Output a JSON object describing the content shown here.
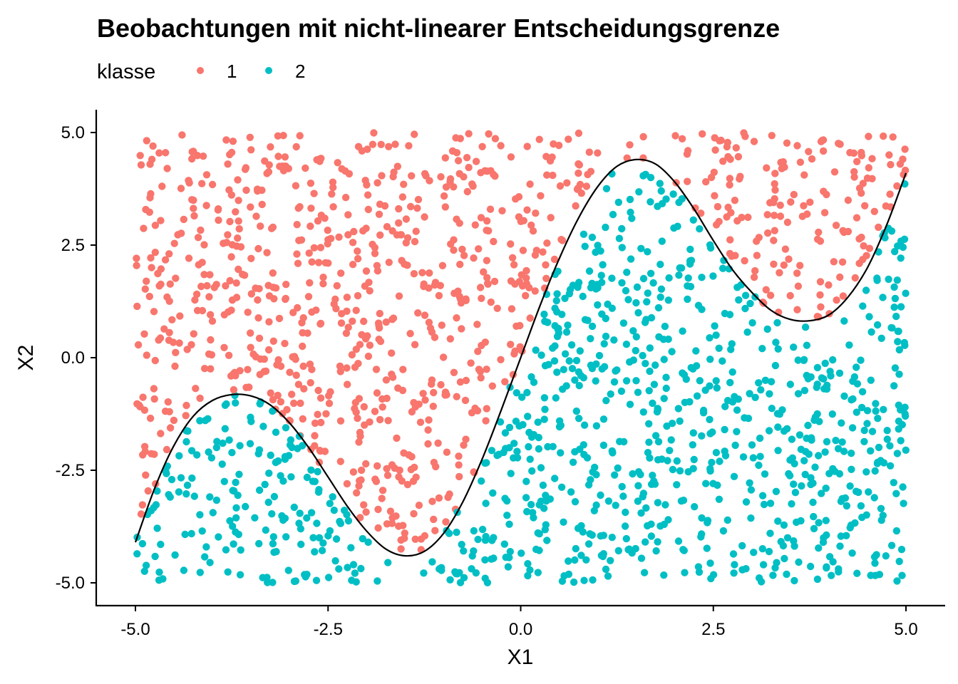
{
  "chart_data": {
    "type": "scatter",
    "title": "Beobachtungen mit nicht-linearer Entscheidungsgrenze",
    "xlabel": "X1",
    "ylabel": "X2",
    "xlim": [
      -5.0,
      5.0
    ],
    "ylim": [
      -5.0,
      5.0
    ],
    "x_ticks": [
      "-5.0",
      "-2.5",
      "0.0",
      "2.5",
      "5.0"
    ],
    "y_ticks": [
      "5.0",
      "2.5",
      "0.0",
      "-2.5",
      "-5.0"
    ],
    "x_tick_values": [
      -5.0,
      -2.5,
      0.0,
      2.5,
      5.0
    ],
    "y_tick_values": [
      5.0,
      2.5,
      0.0,
      -2.5,
      -5.0
    ],
    "grid": false,
    "legend": {
      "title": "klasse",
      "position": "top-left",
      "entries": [
        {
          "label": "1",
          "color": "#F8766D"
        },
        {
          "label": "2",
          "color": "#00BFC4"
        }
      ]
    },
    "decision_boundary": {
      "description": "Kurve",
      "color": "#000000",
      "points": [
        [
          -5.0,
          -4.1
        ],
        [
          -4.75,
          -2.9
        ],
        [
          -4.5,
          -1.95
        ],
        [
          -4.25,
          -1.3
        ],
        [
          -4.0,
          -0.95
        ],
        [
          -3.75,
          -0.82
        ],
        [
          -3.5,
          -0.85
        ],
        [
          -3.25,
          -1.05
        ],
        [
          -3.0,
          -1.45
        ],
        [
          -2.75,
          -2.0
        ],
        [
          -2.5,
          -2.65
        ],
        [
          -2.25,
          -3.3
        ],
        [
          -2.0,
          -3.85
        ],
        [
          -1.75,
          -4.25
        ],
        [
          -1.5,
          -4.4
        ],
        [
          -1.25,
          -4.3
        ],
        [
          -1.0,
          -3.9
        ],
        [
          -0.75,
          -3.2
        ],
        [
          -0.5,
          -2.25
        ],
        [
          -0.25,
          -1.15
        ],
        [
          0.0,
          0.0
        ],
        [
          0.25,
          1.15
        ],
        [
          0.5,
          2.2
        ],
        [
          0.75,
          3.1
        ],
        [
          1.0,
          3.8
        ],
        [
          1.25,
          4.25
        ],
        [
          1.5,
          4.4
        ],
        [
          1.75,
          4.3
        ],
        [
          2.0,
          3.9
        ],
        [
          2.25,
          3.3
        ],
        [
          2.5,
          2.6
        ],
        [
          2.75,
          1.95
        ],
        [
          3.0,
          1.45
        ],
        [
          3.25,
          1.05
        ],
        [
          3.5,
          0.85
        ],
        [
          3.75,
          0.82
        ],
        [
          4.0,
          0.95
        ],
        [
          4.25,
          1.35
        ],
        [
          4.5,
          2.0
        ],
        [
          4.75,
          2.95
        ],
        [
          5.0,
          4.1
        ]
      ]
    },
    "series": [
      {
        "name": "1",
        "color": "#F8766D",
        "rule": "X2 oberhalb der Entscheidungsgrenze",
        "n_points": 950
      },
      {
        "name": "2",
        "color": "#00BFC4",
        "rule": "X2 unterhalb der Entscheidungsgrenze",
        "n_points": 950
      }
    ]
  }
}
